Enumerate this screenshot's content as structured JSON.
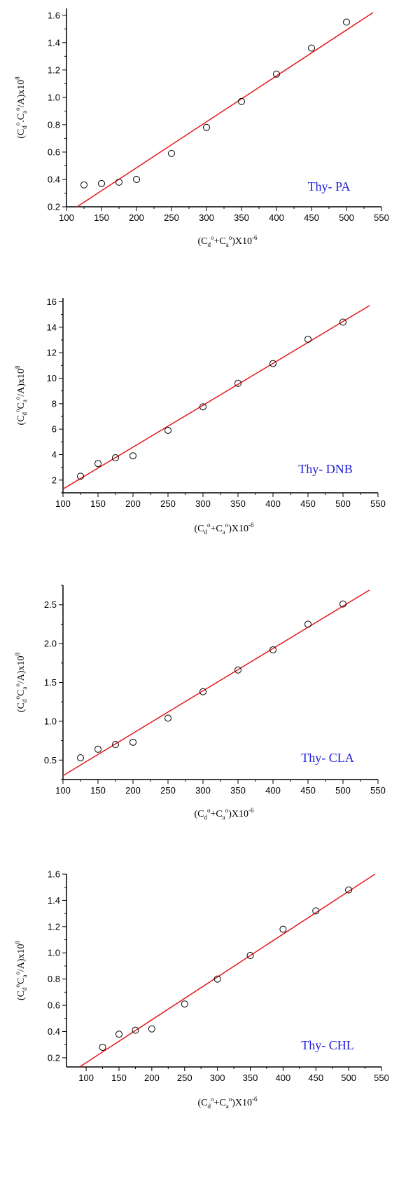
{
  "colors": {
    "axis": "#000000",
    "fit_line": "#e31a1c",
    "label": "#1f1fdc",
    "marker": "#000000"
  },
  "axis_title_parts": {
    "x": {
      "open": "(C",
      "sub_d": "d",
      "sup_o1": "o",
      "plus": "+C",
      "sub_a": "a",
      "sup_o2": "o",
      "close": ")X10",
      "exp": "-6"
    },
    "y_pa": {
      "open": "(C",
      "sub_d": "d",
      "sup_o1": "o",
      "mid": ".C",
      "sub_a": "a",
      "sup_o2": "o",
      "close": "/A)x10",
      "exp": "8"
    },
    "y_other": {
      "open": "(C",
      "sub_d": "d",
      "sup_o1": "o",
      "mid": "C",
      "sub_a": "a",
      "sup_o2": "o",
      "close": "/A)x10",
      "exp": "8"
    }
  },
  "chart_data": [
    {
      "type": "scatter",
      "label": "Thy- PA",
      "y_title": "y_pa",
      "xlim": [
        100,
        550
      ],
      "ylim": [
        0.2,
        1.65
      ],
      "xticks": [
        100,
        150,
        200,
        250,
        300,
        350,
        400,
        450,
        500,
        550
      ],
      "yticks": [
        0.2,
        0.4,
        0.6,
        0.8,
        1.0,
        1.2,
        1.4,
        1.6
      ],
      "ytick_decimals": 1,
      "points": {
        "x": [
          125,
          150,
          175,
          200,
          250,
          300,
          350,
          400,
          450,
          500
        ],
        "y": [
          0.36,
          0.37,
          0.38,
          0.4,
          0.59,
          0.78,
          0.97,
          1.17,
          1.36,
          1.55
        ]
      },
      "fit": {
        "x": [
          115,
          538
        ],
        "y": [
          0.2,
          1.62
        ]
      }
    },
    {
      "type": "scatter",
      "label": "Thy- DNB",
      "y_title": "y_other",
      "xlim": [
        100,
        550
      ],
      "ylim": [
        1.0,
        16.3
      ],
      "xticks": [
        100,
        150,
        200,
        250,
        300,
        350,
        400,
        450,
        500,
        550
      ],
      "yticks": [
        2,
        4,
        6,
        8,
        10,
        12,
        14,
        16
      ],
      "ytick_decimals": 0,
      "points": {
        "x": [
          125,
          150,
          175,
          200,
          250,
          300,
          350,
          400,
          450,
          500
        ],
        "y": [
          2.3,
          3.3,
          3.75,
          3.9,
          5.9,
          7.75,
          9.6,
          11.15,
          13.05,
          14.4
        ]
      },
      "fit": {
        "x": [
          100,
          538
        ],
        "y": [
          1.3,
          15.7
        ]
      }
    },
    {
      "type": "scatter",
      "label": "Thy- CLA",
      "y_title": "y_other",
      "xlim": [
        100,
        550
      ],
      "ylim": [
        0.25,
        2.75
      ],
      "xticks": [
        100,
        150,
        200,
        250,
        300,
        350,
        400,
        450,
        500,
        550
      ],
      "yticks": [
        0.5,
        1.0,
        1.5,
        2.0,
        2.5
      ],
      "ytick_decimals": 1,
      "points": {
        "x": [
          125,
          150,
          175,
          200,
          250,
          300,
          350,
          400,
          450,
          500
        ],
        "y": [
          0.53,
          0.64,
          0.7,
          0.73,
          1.04,
          1.38,
          1.66,
          1.92,
          2.25,
          2.51
        ]
      },
      "fit": {
        "x": [
          100,
          538
        ],
        "y": [
          0.3,
          2.69
        ]
      }
    },
    {
      "type": "scatter",
      "label": "Thy- CHL",
      "y_title": "y_other",
      "xlim": [
        70,
        550
      ],
      "ylim": [
        0.13,
        1.6
      ],
      "xticks": [
        100,
        150,
        200,
        250,
        300,
        350,
        400,
        450,
        500,
        550
      ],
      "yticks": [
        0.2,
        0.4,
        0.6,
        0.8,
        1.0,
        1.2,
        1.4,
        1.6
      ],
      "ytick_decimals": 1,
      "points": {
        "x": [
          125,
          150,
          175,
          200,
          250,
          300,
          350,
          400,
          450,
          500
        ],
        "y": [
          0.28,
          0.38,
          0.41,
          0.42,
          0.61,
          0.8,
          0.98,
          1.18,
          1.32,
          1.48
        ]
      },
      "fit": {
        "x": [
          90,
          540
        ],
        "y": [
          0.13,
          1.6
        ]
      }
    }
  ]
}
